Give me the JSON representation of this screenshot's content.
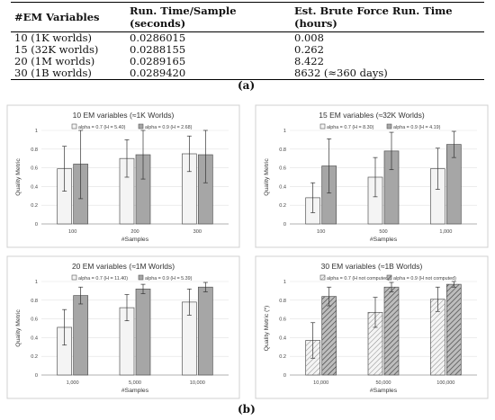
{
  "table": {
    "headers": [
      "#EM Variables",
      "Run. Time/Sample (seconds)",
      "Est. Brute Force Run. Time (hours)"
    ],
    "rows": [
      [
        "10 (1K worlds)",
        "0.0286015",
        "0.008"
      ],
      [
        "15 (32K worlds)",
        "0.0288155",
        "0.262"
      ],
      [
        "20 (1M worlds)",
        "0.0289165",
        "8.422"
      ],
      [
        "30 (1B worlds)",
        "0.0289420",
        "8632 (≈360 days)"
      ]
    ]
  },
  "captions": {
    "a": "(a)",
    "b": "(b)"
  },
  "chart_data": [
    {
      "type": "bar",
      "title": "10 EM variables (≈1K Worlds)",
      "xlabel": "#Samples",
      "ylabel": "Quality Metric",
      "ylim": [
        0,
        1
      ],
      "yticks": [
        "0",
        "0.2",
        "0.4",
        "0.6",
        "0.8",
        "1"
      ],
      "categories": [
        "100",
        "200",
        "300"
      ],
      "series": [
        {
          "name": "alpha = 0.7 (H = 5.40)",
          "values": [
            0.59,
            0.7,
            0.75
          ],
          "err": [
            0.24,
            0.2,
            0.19
          ],
          "color": "#f4f4f4"
        },
        {
          "name": "alpha = 0.9 (H = 2.68)",
          "values": [
            0.64,
            0.74,
            0.74
          ],
          "err": [
            0.37,
            0.26,
            0.3
          ],
          "color": "#a6a6a6"
        }
      ],
      "legend": "top",
      "grid": true
    },
    {
      "type": "bar",
      "title": "15 EM variables (≈32K Worlds)",
      "xlabel": "#Samples",
      "ylabel": "Quality Metric",
      "ylim": [
        0,
        1
      ],
      "yticks": [
        "0",
        "0.2",
        "0.4",
        "0.6",
        "0.8",
        "1"
      ],
      "categories": [
        "100",
        "500",
        "1,000"
      ],
      "series": [
        {
          "name": "alpha = 0.7 (H = 8.30)",
          "values": [
            0.28,
            0.5,
            0.59
          ],
          "err": [
            0.16,
            0.21,
            0.22
          ],
          "color": "#f4f4f4"
        },
        {
          "name": "alpha = 0.9 (H = 4.19)",
          "values": [
            0.62,
            0.78,
            0.85
          ],
          "err": [
            0.29,
            0.2,
            0.14
          ],
          "color": "#a6a6a6"
        }
      ],
      "legend": "top",
      "grid": true
    },
    {
      "type": "bar",
      "title": "20 EM variables (≈1M Worlds)",
      "xlabel": "#Samples",
      "ylabel": "Quality Metric",
      "ylim": [
        0,
        1
      ],
      "yticks": [
        "0",
        "0.2",
        "0.4",
        "0.6",
        "0.8",
        "1"
      ],
      "categories": [
        "1,000",
        "5,000",
        "10,000"
      ],
      "series": [
        {
          "name": "alpha = 0.7 (H = 11.40)",
          "values": [
            0.51,
            0.72,
            0.78
          ],
          "err": [
            0.19,
            0.14,
            0.14
          ],
          "color": "#f4f4f4"
        },
        {
          "name": "alpha = 0.9 (H = 5.39)",
          "values": [
            0.85,
            0.92,
            0.94
          ],
          "err": [
            0.09,
            0.05,
            0.05
          ],
          "color": "#a6a6a6"
        }
      ],
      "legend": "top",
      "grid": true
    },
    {
      "type": "bar",
      "title": "30 EM variables (≈1B Worlds)",
      "xlabel": "#Samples",
      "ylabel": "Quality Metric (*)",
      "ylim": [
        0,
        1
      ],
      "yticks": [
        "0",
        "0.2",
        "0.4",
        "0.6",
        "0.8",
        "1"
      ],
      "categories": [
        "10,000",
        "50,000",
        "100,000"
      ],
      "series": [
        {
          "name": "alpha = 0.7 (H not computed)",
          "values": [
            0.37,
            0.67,
            0.81
          ],
          "err": [
            0.19,
            0.16,
            0.13
          ],
          "color": "#f4f4f4",
          "hatched": true
        },
        {
          "name": "alpha = 0.9 (H not computed)",
          "values": [
            0.84,
            0.94,
            0.97
          ],
          "err": [
            0.1,
            0.05,
            0.03
          ],
          "color": "#a6a6a6",
          "hatched": true
        }
      ],
      "legend": "top",
      "grid": true
    }
  ]
}
